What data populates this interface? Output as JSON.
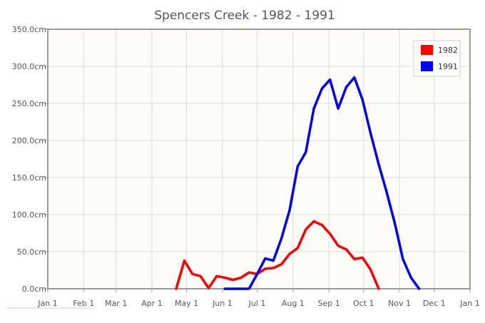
{
  "chart_data": {
    "type": "line",
    "title": "Spencers Creek - 1982 - 1991",
    "xlabel": "",
    "ylabel": "",
    "x_ticks": [
      "Jan 1",
      "Feb 1",
      "Mar 1",
      "Apr 1",
      "May 1",
      "Jun 1",
      "Jul 1",
      "Aug 1",
      "Sep 1",
      "Oct 1",
      "Nov 1",
      "Dec 1",
      "Jan 1"
    ],
    "y_ticks": [
      "0.0cm",
      "50.0cm",
      "100.0cm",
      "150.0cm",
      "200.0cm",
      "250.0cm",
      "300.0cm",
      "350.0cm"
    ],
    "ylim": [
      0,
      350
    ],
    "grid": true,
    "legend_position": "top-right",
    "series": [
      {
        "name": "1982",
        "color": "#ff0000",
        "points": [
          [
            "Apr 22",
            0
          ],
          [
            "Apr 29",
            38
          ],
          [
            "May 6",
            20
          ],
          [
            "May 13",
            17
          ],
          [
            "May 20",
            1
          ],
          [
            "May 27",
            17
          ],
          [
            "Jun 3",
            15
          ],
          [
            "Jun 10",
            12
          ],
          [
            "Jun 17",
            15
          ],
          [
            "Jun 24",
            22
          ],
          [
            "Jul 1",
            20
          ],
          [
            "Jul 8",
            27
          ],
          [
            "Jul 15",
            28
          ],
          [
            "Jul 22",
            33
          ],
          [
            "Jul 29",
            47
          ],
          [
            "Aug 5",
            55
          ],
          [
            "Aug 12",
            80
          ],
          [
            "Aug 19",
            91
          ],
          [
            "Aug 26",
            86
          ],
          [
            "Sep 2",
            74
          ],
          [
            "Sep 9",
            58
          ],
          [
            "Sep 16",
            53
          ],
          [
            "Sep 23",
            40
          ],
          [
            "Sep 30",
            42
          ],
          [
            "Oct 7",
            26
          ],
          [
            "Oct 14",
            0
          ]
        ]
      },
      {
        "name": "1991",
        "color": "#0000ff",
        "points": [
          [
            "Jun 3",
            0
          ],
          [
            "Jun 10",
            0
          ],
          [
            "Jun 17",
            0
          ],
          [
            "Jun 24",
            0
          ],
          [
            "Jul 1",
            20
          ],
          [
            "Jul 8",
            41
          ],
          [
            "Jul 15",
            38
          ],
          [
            "Jul 22",
            68
          ],
          [
            "Jul 29",
            106
          ],
          [
            "Aug 5",
            165
          ],
          [
            "Aug 12",
            184
          ],
          [
            "Aug 19",
            243
          ],
          [
            "Aug 26",
            270
          ],
          [
            "Sep 2",
            282
          ],
          [
            "Sep 9",
            243
          ],
          [
            "Sep 16",
            272
          ],
          [
            "Sep 23",
            285
          ],
          [
            "Sep 30",
            255
          ],
          [
            "Oct 7",
            210
          ],
          [
            "Oct 14",
            168
          ],
          [
            "Oct 21",
            130
          ],
          [
            "Oct 28",
            88
          ],
          [
            "Nov 4",
            40
          ],
          [
            "Nov 11",
            15
          ],
          [
            "Nov 18",
            0
          ]
        ]
      }
    ]
  }
}
